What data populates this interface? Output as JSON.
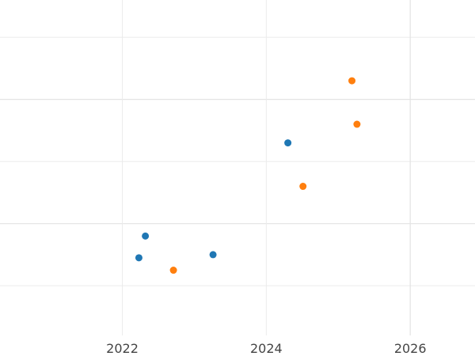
{
  "chart_data": {
    "type": "scatter",
    "title": "",
    "xlabel": "",
    "ylabel": "",
    "grid": true,
    "legend": "none",
    "xlim": [
      2020.3,
      2026.9
    ],
    "ylim": [
      0,
      5.4
    ],
    "x_ticks": [
      {
        "value": 2022,
        "label": "2022"
      },
      {
        "value": 2024,
        "label": "2024"
      },
      {
        "value": 2026,
        "label": "2026"
      }
    ],
    "x_minor_gridlines": [],
    "y_gridlines": [
      0.8,
      1.8,
      2.8,
      3.8,
      4.8
    ],
    "series": [
      {
        "color": "#1f77b4",
        "points": [
          {
            "x": 2022.23,
            "y": 1.25
          },
          {
            "x": 2022.32,
            "y": 1.6
          },
          {
            "x": 2023.26,
            "y": 1.3
          },
          {
            "x": 2024.3,
            "y": 3.1
          }
        ]
      },
      {
        "color": "#ff7f0e",
        "points": [
          {
            "x": 2022.71,
            "y": 1.05
          },
          {
            "x": 2024.51,
            "y": 2.4
          },
          {
            "x": 2025.19,
            "y": 4.1
          },
          {
            "x": 2025.26,
            "y": 3.4
          }
        ]
      }
    ]
  }
}
